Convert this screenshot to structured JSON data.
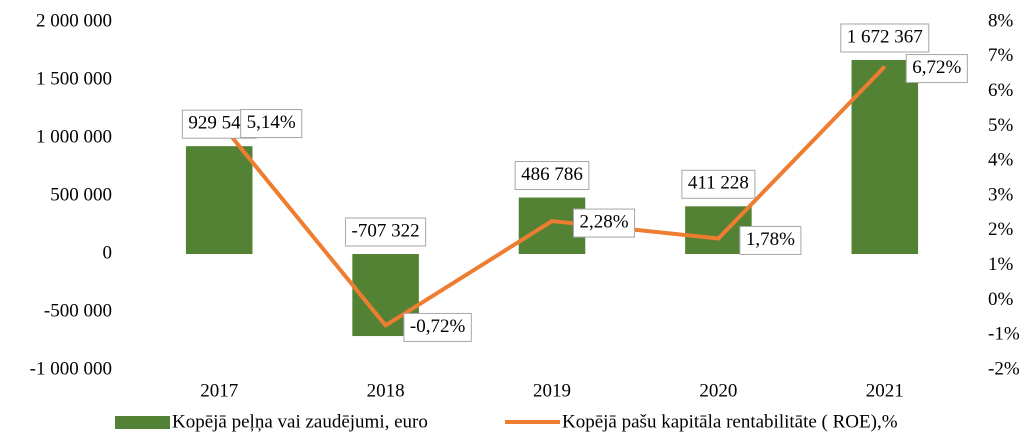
{
  "chart_data": {
    "type": "bar-line",
    "categories": [
      "2017",
      "2018",
      "2019",
      "2020",
      "2021"
    ],
    "series": [
      {
        "name": "Kopējā peļņa vai zaudējumi, euro",
        "type": "bar",
        "color": "#548235",
        "values": [
          929546,
          -707322,
          486786,
          411228,
          1672367
        ],
        "value_labels": [
          "929 546",
          "-707 322",
          "486 786",
          "411 228",
          "1 672 367"
        ]
      },
      {
        "name": "Kopējā pašu kapitāla rentabilitāte ( ROE),%",
        "type": "line",
        "color": "#ed7d31",
        "axis": "y2",
        "values": [
          5.14,
          -0.72,
          2.28,
          1.78,
          6.72
        ],
        "value_labels": [
          "5,14%",
          "-0,72%",
          "2,28%",
          "1,78%",
          "6,72%"
        ]
      }
    ],
    "ylim": [
      -1000000,
      2000000
    ],
    "yticks": [
      {
        "value": -1000000,
        "label": "-1 000 000"
      },
      {
        "value": -500000,
        "label": "-500 000"
      },
      0,
      {
        "value": 500000,
        "label": "500 000"
      },
      {
        "value": 1000000,
        "label": "1 000 000"
      },
      {
        "value": 1500000,
        "label": "1 500 000"
      },
      {
        "value": 2000000,
        "label": "2 000 000"
      }
    ],
    "y2lim": [
      -2,
      8
    ],
    "y2ticks": [
      {
        "value": -2,
        "label": "-2%"
      },
      {
        "value": -1,
        "label": "-1%"
      },
      {
        "value": 0,
        "label": "0%"
      },
      {
        "value": 1,
        "label": "1%"
      },
      {
        "value": 2,
        "label": "2%"
      },
      {
        "value": 3,
        "label": "3%"
      },
      {
        "value": 4,
        "label": "4%"
      },
      {
        "value": 5,
        "label": "5%"
      },
      {
        "value": 6,
        "label": "6%"
      },
      {
        "value": 7,
        "label": "7%"
      },
      {
        "value": 8,
        "label": "8%"
      }
    ],
    "legend": "bottom"
  }
}
